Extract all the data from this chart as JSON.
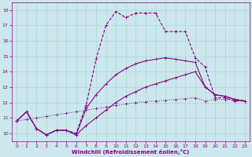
{
  "background_color": "#cce8ec",
  "grid_color": "#aad4d8",
  "line_color": "#880088",
  "xlabel": "Windchill (Refroidissement éolien,°C)",
  "ylim": [
    9.5,
    18.5
  ],
  "xlim": [
    -0.5,
    23.5
  ],
  "yticks": [
    10,
    11,
    12,
    13,
    14,
    15,
    16,
    17,
    18
  ],
  "xticks": [
    0,
    1,
    2,
    3,
    4,
    5,
    6,
    7,
    8,
    9,
    10,
    11,
    12,
    13,
    14,
    15,
    16,
    17,
    18,
    19,
    20,
    21,
    22,
    23
  ],
  "curves": [
    {
      "x": [
        0,
        1,
        2,
        3,
        4,
        5,
        6,
        7,
        8,
        9,
        10,
        11,
        12,
        13,
        14,
        15,
        16,
        17,
        18,
        19,
        20,
        21,
        22,
        23
      ],
      "y": [
        10.8,
        10.9,
        11.0,
        11.1,
        11.2,
        11.3,
        11.4,
        11.5,
        11.6,
        11.7,
        11.8,
        11.9,
        12.0,
        12.05,
        12.1,
        12.15,
        12.2,
        12.25,
        12.3,
        12.1,
        12.2,
        12.2,
        12.15,
        12.1
      ],
      "ls": ":",
      "lw": 0.7,
      "marker": "+",
      "ms": 2.5
    },
    {
      "x": [
        0,
        1,
        2,
        3,
        4,
        5,
        6,
        7,
        8,
        9,
        10,
        11,
        12,
        13,
        14,
        15,
        16,
        17,
        18,
        19,
        20,
        21,
        22,
        23
      ],
      "y": [
        10.8,
        11.4,
        10.3,
        9.9,
        10.2,
        10.2,
        9.9,
        10.5,
        11.0,
        11.5,
        12.0,
        12.4,
        12.7,
        13.0,
        13.2,
        13.4,
        13.6,
        13.8,
        14.0,
        13.0,
        12.5,
        12.4,
        12.2,
        12.1
      ],
      "ls": "-",
      "lw": 0.8,
      "marker": "+",
      "ms": 2.5
    },
    {
      "x": [
        0,
        1,
        2,
        3,
        4,
        5,
        6,
        7,
        8,
        9,
        10,
        11,
        12,
        13,
        14,
        15,
        16,
        17,
        18,
        19,
        20,
        21,
        22,
        23
      ],
      "y": [
        10.8,
        11.4,
        10.3,
        9.9,
        10.2,
        10.2,
        9.9,
        11.6,
        12.5,
        13.2,
        13.8,
        14.2,
        14.5,
        14.7,
        14.8,
        14.9,
        14.8,
        14.7,
        14.6,
        13.0,
        12.5,
        12.4,
        12.2,
        12.1
      ],
      "ls": "-",
      "lw": 0.8,
      "marker": "+",
      "ms": 2.5
    },
    {
      "x": [
        0,
        1,
        2,
        3,
        4,
        5,
        6,
        7,
        8,
        9,
        10,
        11,
        12,
        13,
        14,
        15,
        16,
        17,
        18,
        19,
        20,
        21,
        22,
        23
      ],
      "y": [
        10.8,
        11.4,
        10.3,
        9.9,
        10.2,
        10.2,
        10.0,
        11.8,
        14.8,
        17.0,
        17.9,
        17.5,
        17.8,
        17.8,
        17.8,
        16.6,
        16.6,
        16.6,
        14.9,
        14.3,
        12.3,
        12.3,
        12.1,
        12.1
      ],
      "ls": "--",
      "lw": 0.8,
      "marker": "+",
      "ms": 3.0
    }
  ]
}
